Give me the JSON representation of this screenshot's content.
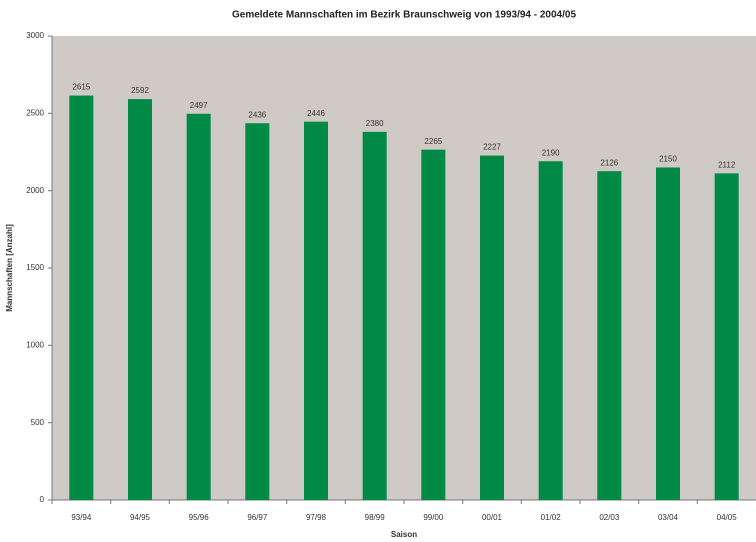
{
  "chart_data": {
    "type": "bar",
    "title": "Gemeldete Mannschaften im Bezirk Braunschweig von 1993/94 - 2004/05",
    "y_label": "Mannschaften [Anzahl]",
    "x_label": "Saison",
    "categories": [
      "93/94",
      "94/95",
      "95/96",
      "96/97",
      "97/98",
      "98/99",
      "99/00",
      "00/01",
      "01/02",
      "02/03",
      "03/04",
      "04/05"
    ],
    "values": [
      2615,
      2592,
      2497,
      2436,
      2446,
      2380,
      2265,
      2227,
      2190,
      2126,
      2150,
      2112
    ],
    "color": "#008a45",
    "ylim": [
      0,
      3000
    ],
    "yticks": [
      0,
      500,
      1000,
      1500,
      2000,
      2500,
      3000
    ],
    "background": "#d0cac7"
  }
}
